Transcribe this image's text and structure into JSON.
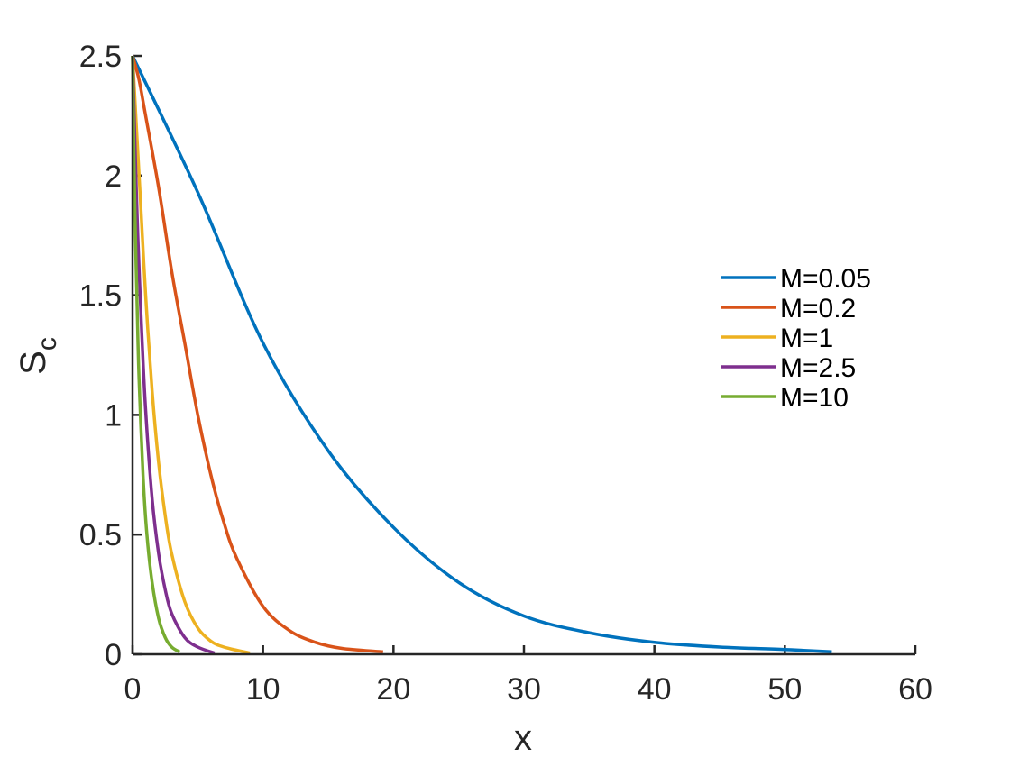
{
  "chart_data": {
    "type": "line",
    "title": "",
    "xlabel": "x",
    "ylabel_main": "S",
    "ylabel_sub": "c",
    "xlim": [
      0,
      60
    ],
    "ylim": [
      0,
      2.5
    ],
    "xticks": [
      0,
      10,
      20,
      30,
      40,
      50,
      60
    ],
    "xtick_labels": [
      "0",
      "10",
      "20",
      "30",
      "40",
      "50",
      "60"
    ],
    "yticks": [
      0,
      0.5,
      1,
      1.5,
      2,
      2.5
    ],
    "ytick_labels": [
      "0",
      "0.5",
      "1",
      "1.5",
      "2",
      "2.5"
    ],
    "grid": false,
    "legend_position": "right",
    "series": [
      {
        "name": "M=0.05",
        "color": "#0072BD",
        "x": [
          0,
          5,
          10,
          15,
          20,
          25,
          30,
          35,
          40,
          45,
          50,
          53.6
        ],
        "y": [
          2.5,
          1.93,
          1.3,
          0.85,
          0.53,
          0.3,
          0.16,
          0.09,
          0.05,
          0.03,
          0.02,
          0.01
        ]
      },
      {
        "name": "M=0.2",
        "color": "#D95319",
        "x": [
          0,
          0.5,
          1,
          2,
          3,
          4,
          5,
          6,
          7,
          8,
          10,
          12,
          14,
          16,
          19.2
        ],
        "y": [
          2.5,
          2.4,
          2.25,
          1.95,
          1.6,
          1.3,
          1.0,
          0.75,
          0.55,
          0.4,
          0.2,
          0.1,
          0.05,
          0.025,
          0.01
        ]
      },
      {
        "name": "M=1",
        "color": "#EDB120",
        "x": [
          0,
          0.3,
          0.6,
          1,
          1.5,
          2,
          2.5,
          3,
          4,
          5,
          6,
          7,
          9
        ],
        "y": [
          2.5,
          2.2,
          1.9,
          1.5,
          1.1,
          0.8,
          0.58,
          0.42,
          0.22,
          0.11,
          0.055,
          0.03,
          0.005
        ]
      },
      {
        "name": "M=2.5",
        "color": "#7E2F8E",
        "x": [
          0,
          0.2,
          0.4,
          0.7,
          1,
          1.5,
          2,
          2.5,
          3,
          4,
          5,
          6.3
        ],
        "y": [
          2.5,
          2.1,
          1.75,
          1.35,
          1.02,
          0.65,
          0.42,
          0.27,
          0.17,
          0.07,
          0.03,
          0.005
        ]
      },
      {
        "name": "M=10",
        "color": "#77AC30",
        "x": [
          0,
          0.1,
          0.2,
          0.35,
          0.5,
          0.8,
          1.1,
          1.5,
          2,
          2.5,
          3,
          3.6
        ],
        "y": [
          2.5,
          2.1,
          1.8,
          1.45,
          1.15,
          0.75,
          0.5,
          0.3,
          0.15,
          0.07,
          0.03,
          0.01
        ]
      }
    ]
  }
}
